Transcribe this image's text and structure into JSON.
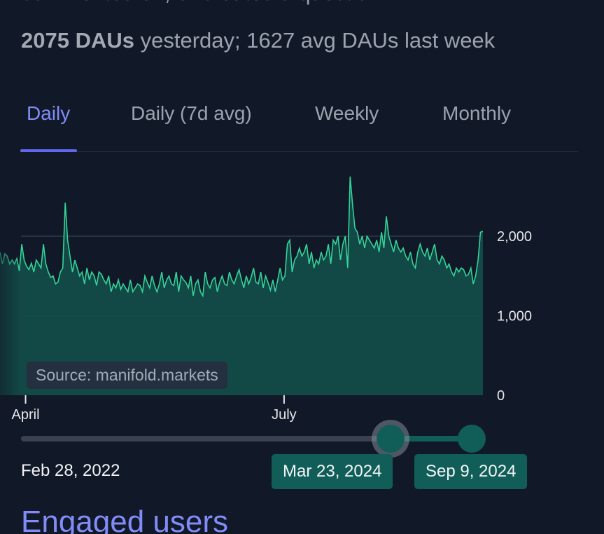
{
  "intro": {
    "tail": "commented on, or created a question."
  },
  "stats": {
    "bold_part": "2075 DAUs",
    "rest": " yesterday; 1627 avg DAUs last week"
  },
  "tabs": [
    {
      "label": "Daily",
      "active": true
    },
    {
      "label": "Daily (7d avg)",
      "active": false
    },
    {
      "label": "Weekly",
      "active": false
    },
    {
      "label": "Monthly",
      "active": false
    }
  ],
  "chart_data": {
    "type": "area",
    "title": "",
    "xlabel": "",
    "ylabel": "",
    "x_tick_labels": [
      "April",
      "July"
    ],
    "y_tick_labels": [
      "0",
      "1,000",
      "2,000"
    ],
    "ylim": [
      0,
      2900
    ],
    "x_range": [
      "2024-03-23",
      "2024-09-09"
    ],
    "grid": true,
    "line_color": "#34d399",
    "fill_color": "#134e4a",
    "source": "Source: manifold.markets",
    "series": [
      {
        "values": [
          1800,
          1650,
          1780,
          1750,
          1650,
          1700,
          1650,
          1720,
          1560,
          1900,
          1700,
          1620,
          1580,
          1660,
          1550,
          1700,
          1650,
          1600,
          1900,
          1650,
          1550,
          1480,
          1500,
          1400,
          1420,
          1550,
          1600,
          2420,
          1950,
          1750,
          1550,
          1700,
          1600,
          1500,
          1550,
          1400,
          1600,
          1450,
          1550,
          1500,
          1380,
          1550,
          1520,
          1450,
          1400,
          1500,
          1300,
          1400,
          1350,
          1450,
          1330,
          1400,
          1350,
          1300,
          1450,
          1300,
          1350,
          1400,
          1380,
          1300,
          1500,
          1420,
          1350,
          1500,
          1380,
          1300,
          1400,
          1550,
          1350,
          1450,
          1500,
          1400,
          1380,
          1550,
          1300,
          1500,
          1450,
          1420,
          1350,
          1500,
          1250,
          1400,
          1450,
          1300,
          1250,
          1550,
          1400,
          1350,
          1450,
          1480,
          1300,
          1420,
          1500,
          1400,
          1380,
          1550,
          1450,
          1400,
          1500,
          1580,
          1450,
          1350,
          1500,
          1400,
          1480,
          1600,
          1420,
          1400,
          1550,
          1350,
          1500,
          1420,
          1320,
          1450,
          1300,
          1450,
          1600,
          1450,
          1500,
          1900,
          1950,
          1550,
          1700,
          1750,
          1850,
          1750,
          1800,
          1900,
          1650,
          1800,
          1600,
          1700,
          1650,
          1800,
          1700,
          1750,
          1900,
          1650,
          1950,
          1900,
          2000,
          1700,
          1900,
          2000,
          1600,
          2750,
          2400,
          2100,
          2050,
          1900,
          2000,
          1850,
          2000,
          1950,
          1900,
          1850,
          1950,
          1800,
          2050,
          1850,
          2250,
          2000,
          1900,
          1800,
          1950,
          1850,
          1800,
          1850,
          1750,
          1700,
          1800,
          1650,
          1600,
          1800,
          1900,
          1800,
          1750,
          1850,
          1700,
          1800,
          1900,
          1700,
          1650,
          1750,
          1700,
          1600,
          1650,
          1550,
          1500,
          1600,
          1550,
          1600,
          1580,
          1500,
          1520,
          1600,
          1400,
          1500,
          1700,
          2050,
          2060
        ]
      }
    ]
  },
  "range": {
    "min_label": "Feb 28, 2022",
    "start_label": "Mar 23, 2024",
    "end_label": "Sep 9, 2024",
    "start_fraction": 0.8,
    "end_fraction": 0.975
  },
  "next_section": {
    "title": "Engaged users"
  }
}
